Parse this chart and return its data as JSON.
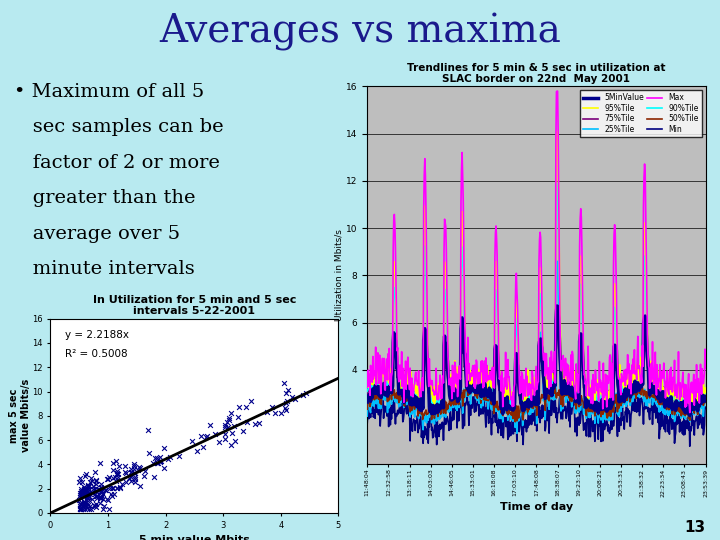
{
  "title": "Averages vs maxima",
  "title_fontsize": 28,
  "title_color": "#1a1a8c",
  "bg_color": "#b8eaf0",
  "bullet_lines": [
    "• Maximum of all 5",
    "   sec samples can be",
    "   factor of 2 or more",
    "   greater than the",
    "   average over 5",
    "   minute intervals"
  ],
  "bullet_fontsize": 14,
  "scatter_title": "In Utilization for 5 min and 5 sec\nintervals 5-22-2001",
  "scatter_xlabel": "5 min value Mbits",
  "scatter_ylabel": "max 5 sec\nvalue Mbits/s",
  "scatter_equation": "y = 2.2188x",
  "scatter_r2": "R² = 0.5008",
  "scatter_xlim": [
    0,
    5
  ],
  "scatter_ylim": [
    0,
    16
  ],
  "scatter_xticks": [
    0,
    1,
    2,
    3,
    4,
    5
  ],
  "scatter_yticks": [
    0,
    2,
    4,
    6,
    8,
    10,
    12,
    14,
    16
  ],
  "line_chart_title": "Trendlines for 5 min & 5 sec in utilization at\nSLAC border on 22nd  May 2001",
  "line_chart_xlabel": "Time of day",
  "line_chart_ylabel": "Utilization in Mbits/s",
  "line_chart_ylim": [
    0,
    16
  ],
  "line_chart_yticks": [
    4,
    6,
    8,
    10,
    12,
    14,
    16
  ],
  "time_labels": [
    "11:48:04",
    "12:32:58",
    "13:18:11",
    "14:03:03",
    "14:46:05",
    "15:33:01",
    "16:18:08",
    "17:03:10",
    "17:48:08",
    "18:38:07",
    "19:23:10",
    "20:08:21",
    "20:53:31",
    "21:38:32",
    "22:23:34",
    "23:08:43",
    "23:53:39"
  ],
  "legend_entries": [
    "5MinValue",
    "95%Tile",
    "75%Tile",
    "25%Tile",
    "Max",
    "90%Tile",
    "50%Tile",
    "Min"
  ],
  "legend_colors": [
    "#00008b",
    "#ffff00",
    "#7b007b",
    "#00bfff",
    "#ff00ff",
    "#00ffff",
    "#8b2500",
    "#000080"
  ],
  "legend_widths": [
    2.5,
    1.2,
    1.2,
    1.2,
    1.2,
    1.2,
    1.2,
    1.2
  ],
  "page_number": "13",
  "scatter_marker_color": "#00008b",
  "trend_line_color": "#000000",
  "chart_bg": "#bebebe"
}
